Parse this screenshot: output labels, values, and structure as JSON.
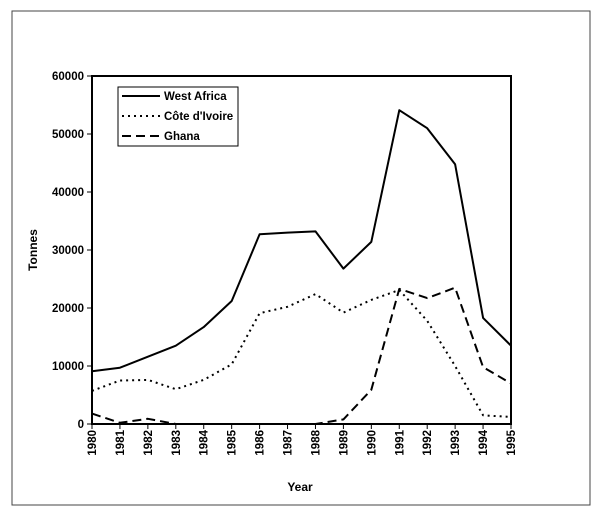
{
  "chart_data": {
    "type": "line",
    "xlabel": "Year",
    "ylabel": "Tonnes",
    "ylim": [
      0,
      60000
    ],
    "yticks": [
      "0",
      "10000",
      "20000",
      "30000",
      "40000",
      "50000",
      "60000"
    ],
    "x": [
      "1980",
      "1981",
      "1982",
      "1983",
      "1984",
      "1985",
      "1986",
      "1987",
      "1988",
      "1989",
      "1990",
      "1991",
      "1992",
      "1993",
      "1994",
      "1995"
    ],
    "grid": false,
    "legend_position": "top-left",
    "series": [
      {
        "name": "West Africa",
        "style": "solid",
        "color": "#000000",
        "values": [
          9100,
          9700,
          11600,
          13500,
          16700,
          21200,
          32700,
          33000,
          33200,
          26800,
          31400,
          54100,
          51000,
          44800,
          18300,
          13500
        ]
      },
      {
        "name": "Côte d'Ivoire",
        "style": "dotted",
        "color": "#000000",
        "values": [
          5700,
          7500,
          7600,
          6000,
          7600,
          10300,
          19100,
          20200,
          22400,
          19200,
          21400,
          23100,
          17800,
          10000,
          1500,
          1200
        ]
      },
      {
        "name": "Ghana",
        "style": "dashed",
        "color": "#000000",
        "values": [
          1800,
          200,
          900,
          0,
          0,
          0,
          0,
          0,
          0,
          800,
          5900,
          23300,
          21700,
          23500,
          9800,
          7000
        ]
      }
    ]
  }
}
